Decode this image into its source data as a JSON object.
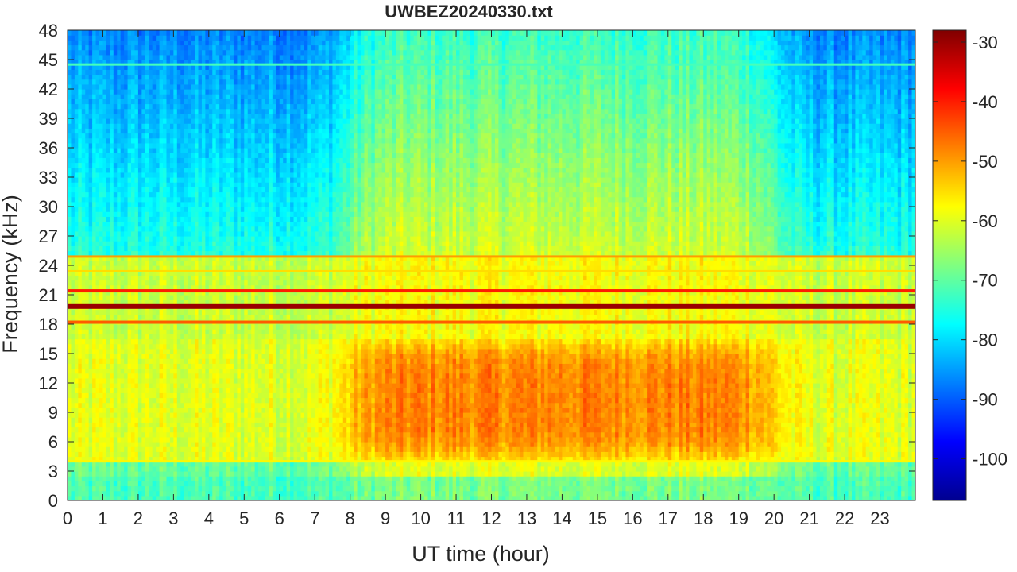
{
  "chart_data": {
    "type": "heatmap",
    "title": "UWBEZ20240330.txt",
    "xlabel": "UT time (hour)",
    "ylabel": "Frequency (kHz)",
    "xlim": [
      0,
      24
    ],
    "ylim": [
      0,
      48
    ],
    "x_ticks": [
      0,
      1,
      2,
      3,
      4,
      5,
      6,
      7,
      8,
      9,
      10,
      11,
      12,
      13,
      14,
      15,
      16,
      17,
      18,
      19,
      20,
      21,
      22,
      23
    ],
    "y_ticks": [
      0,
      3,
      6,
      9,
      12,
      15,
      18,
      21,
      24,
      27,
      30,
      33,
      36,
      39,
      42,
      45,
      48
    ],
    "colorbar": {
      "colormap": "jet",
      "range": [
        -107,
        -28
      ],
      "ticks": [
        -100,
        -90,
        -80,
        -70,
        -60,
        -50,
        -40,
        -30
      ]
    },
    "color_colors": [
      "#00008f",
      "#0000ff",
      "#0080ff",
      "#00ffff",
      "#80ff80",
      "#ffff00",
      "#ff8000",
      "#ff0000",
      "#800000"
    ],
    "features": {
      "narrowband_lines_khz": [
        {
          "freq": 19.8,
          "level": -30
        },
        {
          "freq": 21.4,
          "level": -40
        },
        {
          "freq": 18.2,
          "level": -45
        },
        {
          "freq": 24.9,
          "level": -50
        },
        {
          "freq": 23.4,
          "level": -55
        },
        {
          "freq": 4.0,
          "level": -57
        },
        {
          "freq": 44.5,
          "level": -72
        }
      ],
      "background_level_low_khz": -60,
      "background_level_high_khz": -85,
      "daytime_enhancement": {
        "start_hour": 8.0,
        "end_hour": 20.0,
        "freq_range": [
          4,
          16
        ],
        "peak_level": -48
      }
    }
  }
}
